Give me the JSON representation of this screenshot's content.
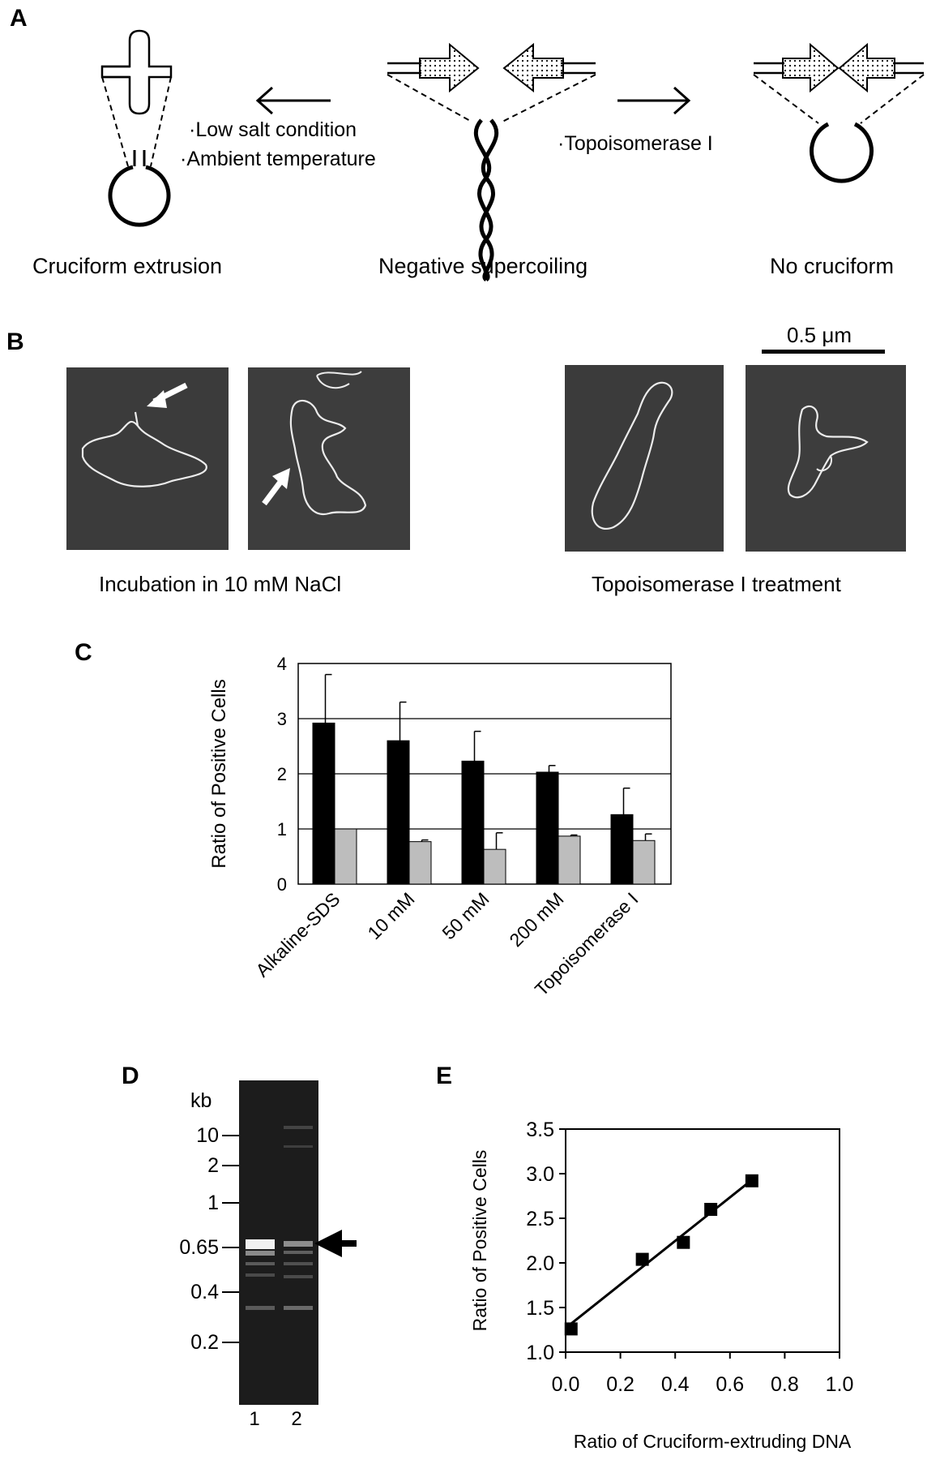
{
  "panels": {
    "a": {
      "letter": "A",
      "cruciform_label": "Cruciform extrusion",
      "supercoil_label": "Negative supercoiling",
      "nocruciform_label": "No cruciform",
      "left_conditions": [
        "·Low salt condition",
        "·Ambient temperature"
      ],
      "right_condition": "·Topoisomerase I"
    },
    "b": {
      "letter": "B",
      "scale_label": "0.5 μm",
      "left_caption": "Incubation in 10 mM NaCl",
      "right_caption": "Topoisomerase I treatment"
    },
    "c": {
      "letter": "C"
    },
    "d": {
      "letter": "D",
      "unit": "kb",
      "ladder": [
        "10",
        "2",
        "1",
        "0.65",
        "0.4",
        "0.2"
      ],
      "lanes": [
        "1",
        "2"
      ]
    },
    "e": {
      "letter": "E"
    }
  },
  "chart_data": [
    {
      "panel": "C",
      "type": "bar",
      "categories": [
        "Alkaline-SDS",
        "10 mM",
        "50 mM",
        "200 mM",
        "Topoisomerase I"
      ],
      "series": [
        {
          "color": "#000000",
          "values": [
            2.92,
            2.6,
            2.23,
            2.03,
            1.26
          ],
          "errors": [
            0.88,
            0.7,
            0.54,
            0.12,
            0.48
          ]
        },
        {
          "color": "#bdbdbd",
          "values": [
            1.0,
            0.77,
            0.63,
            0.87,
            0.79
          ],
          "errors": [
            0.0,
            0.03,
            0.3,
            0.02,
            0.12
          ]
        }
      ],
      "ylabel": "Ratio of Positive Cells",
      "ylim": [
        0,
        4
      ],
      "yticks": [
        "0",
        "1",
        "2",
        "3",
        "4"
      ],
      "grid": true
    },
    {
      "panel": "E",
      "type": "scatter",
      "points": [
        {
          "x": 0.02,
          "y": 1.26
        },
        {
          "x": 0.28,
          "y": 2.04
        },
        {
          "x": 0.43,
          "y": 2.23
        },
        {
          "x": 0.53,
          "y": 2.6
        },
        {
          "x": 0.68,
          "y": 2.92
        }
      ],
      "fit_line": {
        "x1": 0.0,
        "y1": 1.27,
        "x2": 0.68,
        "y2": 2.93
      },
      "xlabel": "Ratio of Cruciform-extruding DNA",
      "ylabel": "Ratio of Positive Cells",
      "xlim": [
        0.0,
        1.0
      ],
      "ylim": [
        1.0,
        3.5
      ],
      "xticks": [
        "0.0",
        "0.2",
        "0.4",
        "0.6",
        "0.8",
        "1.0"
      ],
      "yticks": [
        "1.0",
        "1.5",
        "2.0",
        "2.5",
        "3.0",
        "3.5"
      ]
    }
  ]
}
